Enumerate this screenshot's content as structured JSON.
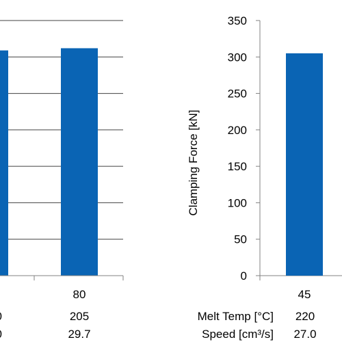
{
  "chart_data": [
    {
      "type": "bar",
      "categories": [
        "",
        "80"
      ],
      "values": [
        null,
        null
      ],
      "colors": {
        "bar": "#0a64b4",
        "grid": "#404040",
        "axis": "#808080"
      },
      "grid": true,
      "ylabel": "",
      "table_rows": [
        {
          "label": "",
          "values": [
            "0",
            "205"
          ]
        },
        {
          "label": "",
          "values": [
            "0",
            "29.7"
          ]
        }
      ]
    },
    {
      "type": "bar",
      "categories": [
        "45",
        ""
      ],
      "values": [
        305,
        null
      ],
      "ylim": [
        0,
        350
      ],
      "yticks": [
        "0",
        "50",
        "100",
        "150",
        "200",
        "250",
        "300",
        "350"
      ],
      "ylabel": "Clamping Force   [kN]",
      "grid": false,
      "colors": {
        "bar": "#0a64b4",
        "axis": "#808080"
      },
      "table_rows": [
        {
          "label": "Melt Temp [°C]",
          "values": [
            "220",
            ""
          ]
        },
        {
          "label": "Speed [cm³/s]",
          "values": [
            "27.0",
            ""
          ]
        }
      ]
    }
  ]
}
